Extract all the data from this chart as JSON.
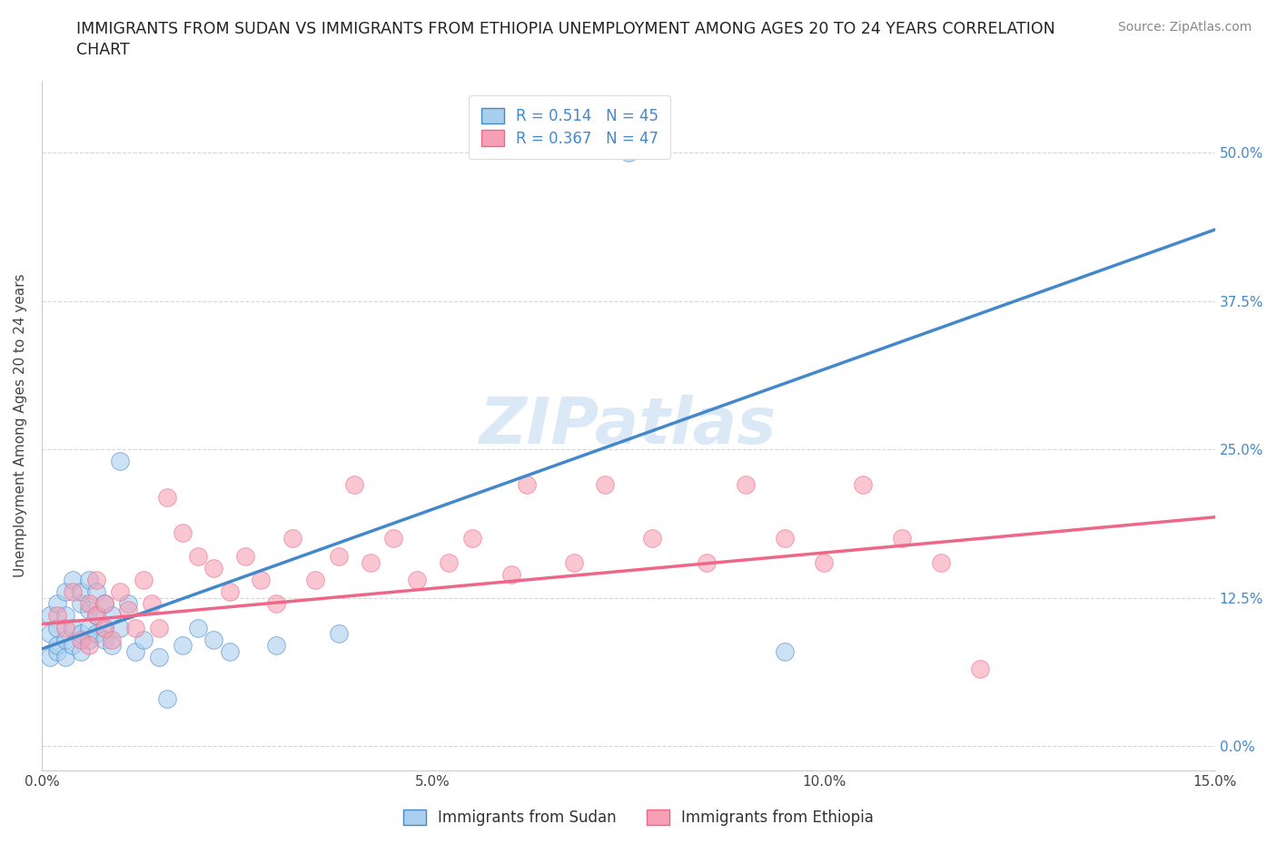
{
  "title_line1": "IMMIGRANTS FROM SUDAN VS IMMIGRANTS FROM ETHIOPIA UNEMPLOYMENT AMONG AGES 20 TO 24 YEARS CORRELATION",
  "title_line2": "CHART",
  "source": "Source: ZipAtlas.com",
  "xlabel": "Immigrants from Sudan",
  "ylabel": "Unemployment Among Ages 20 to 24 years",
  "xlim": [
    0.0,
    0.15
  ],
  "ylim": [
    -0.02,
    0.56
  ],
  "xticks": [
    0.0,
    0.05,
    0.1,
    0.15
  ],
  "xtick_labels": [
    "0.0%",
    "5.0%",
    "10.0%",
    "15.0%"
  ],
  "yticks": [
    0.0,
    0.125,
    0.25,
    0.375,
    0.5
  ],
  "ytick_labels": [
    "0.0%",
    "12.5%",
    "25.0%",
    "37.5%",
    "50.0%"
  ],
  "sudan_color": "#aacfee",
  "ethiopia_color": "#f5a0b5",
  "sudan_line_color": "#4488cc",
  "ethiopia_line_color": "#ee6688",
  "watermark": "ZIPatlas",
  "R_sudan": 0.514,
  "N_sudan": 45,
  "R_ethiopia": 0.367,
  "N_ethiopia": 47,
  "sudan_line_x0": 0.0,
  "sudan_line_y0": 0.082,
  "sudan_line_x1": 0.15,
  "sudan_line_y1": 0.435,
  "ethiopia_line_x0": 0.0,
  "ethiopia_line_y0": 0.103,
  "ethiopia_line_x1": 0.15,
  "ethiopia_line_y1": 0.193,
  "sudan_x": [
    0.001,
    0.001,
    0.001,
    0.002,
    0.002,
    0.002,
    0.002,
    0.003,
    0.003,
    0.003,
    0.003,
    0.004,
    0.004,
    0.004,
    0.005,
    0.005,
    0.005,
    0.005,
    0.006,
    0.006,
    0.006,
    0.006,
    0.007,
    0.007,
    0.007,
    0.008,
    0.008,
    0.008,
    0.009,
    0.009,
    0.01,
    0.01,
    0.011,
    0.012,
    0.013,
    0.015,
    0.016,
    0.018,
    0.02,
    0.022,
    0.024,
    0.03,
    0.038,
    0.075,
    0.095
  ],
  "sudan_y": [
    0.075,
    0.095,
    0.11,
    0.08,
    0.1,
    0.12,
    0.085,
    0.09,
    0.13,
    0.075,
    0.11,
    0.1,
    0.14,
    0.085,
    0.095,
    0.12,
    0.08,
    0.13,
    0.1,
    0.115,
    0.09,
    0.14,
    0.11,
    0.095,
    0.13,
    0.1,
    0.09,
    0.12,
    0.085,
    0.11,
    0.24,
    0.1,
    0.12,
    0.08,
    0.09,
    0.075,
    0.04,
    0.085,
    0.1,
    0.09,
    0.08,
    0.085,
    0.095,
    0.5,
    0.08
  ],
  "ethiopia_x": [
    0.002,
    0.003,
    0.004,
    0.005,
    0.006,
    0.006,
    0.007,
    0.007,
    0.008,
    0.008,
    0.009,
    0.01,
    0.011,
    0.012,
    0.013,
    0.014,
    0.015,
    0.016,
    0.018,
    0.02,
    0.022,
    0.024,
    0.026,
    0.028,
    0.03,
    0.032,
    0.035,
    0.038,
    0.04,
    0.042,
    0.045,
    0.048,
    0.052,
    0.055,
    0.06,
    0.062,
    0.068,
    0.072,
    0.078,
    0.085,
    0.09,
    0.095,
    0.1,
    0.105,
    0.11,
    0.115,
    0.12
  ],
  "ethiopia_y": [
    0.11,
    0.1,
    0.13,
    0.09,
    0.12,
    0.085,
    0.11,
    0.14,
    0.1,
    0.12,
    0.09,
    0.13,
    0.115,
    0.1,
    0.14,
    0.12,
    0.1,
    0.21,
    0.18,
    0.16,
    0.15,
    0.13,
    0.16,
    0.14,
    0.12,
    0.175,
    0.14,
    0.16,
    0.22,
    0.155,
    0.175,
    0.14,
    0.155,
    0.175,
    0.145,
    0.22,
    0.155,
    0.22,
    0.175,
    0.155,
    0.22,
    0.175,
    0.155,
    0.22,
    0.175,
    0.155,
    0.065
  ]
}
